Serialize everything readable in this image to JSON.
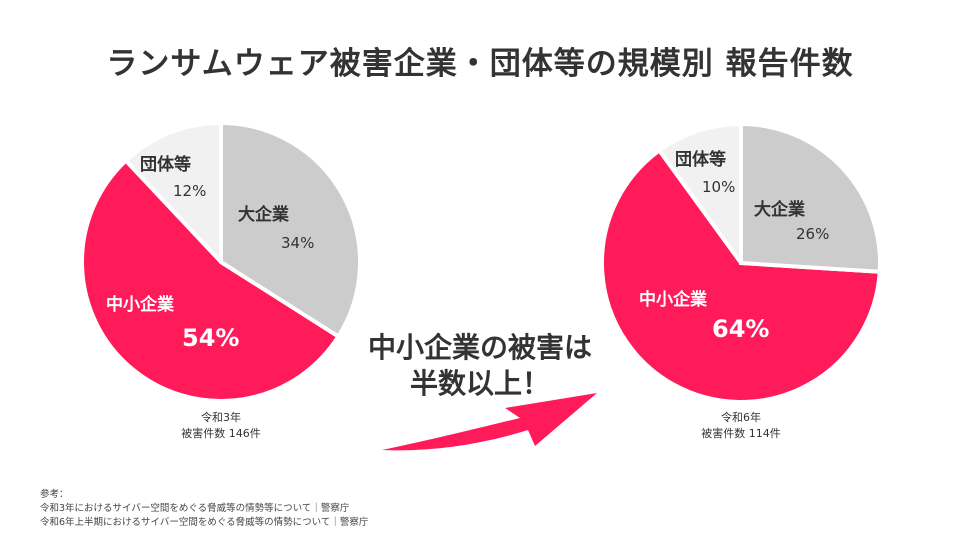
{
  "title": "ランサムウェア被害企業・団体等の規模別 報告件数",
  "message": [
    "中小企業の被害は",
    "半数以上！"
  ],
  "colors": {
    "large": "#cccccc",
    "sme": "#ff1a5a",
    "group": "#f1f1f1",
    "arrow": "#ff1a5a"
  },
  "chart_data": [
    {
      "type": "pie",
      "caption": [
        "令和3年",
        "被害件数 146件"
      ],
      "slices": [
        {
          "name": "大企業",
          "value": 34,
          "label": "34%"
        },
        {
          "name": "中小企業",
          "value": 54,
          "label": "54%"
        },
        {
          "name": "団体等",
          "value": 12,
          "label": "12%"
        }
      ]
    },
    {
      "type": "pie",
      "caption": [
        "令和6年",
        "被害件数 114件"
      ],
      "slices": [
        {
          "name": "大企業",
          "value": 26,
          "label": "26%"
        },
        {
          "name": "中小企業",
          "value": 64,
          "label": "64%"
        },
        {
          "name": "団体等",
          "value": 10,
          "label": "10%"
        }
      ]
    }
  ],
  "references": {
    "heading": "参考：",
    "items": [
      "令和3年におけるサイバー空間をめぐる脅威等の情勢等について｜警察庁",
      "令和6年上半期におけるサイバー空間をめぐる脅威等の情勢について｜警察庁"
    ]
  }
}
